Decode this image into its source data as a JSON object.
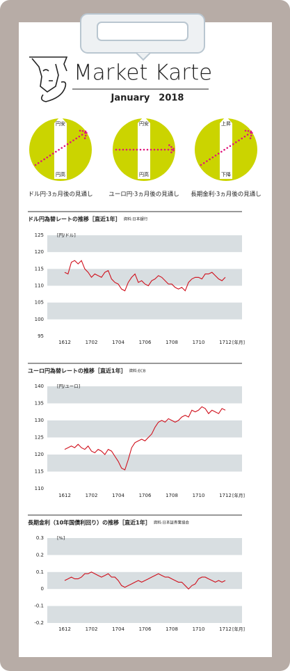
{
  "header": {
    "title": "Market Karte",
    "date": "January　2018"
  },
  "outlook": [
    {
      "top": "円安",
      "bottom": "円高",
      "caption": "ドル円·3ヵ月後の見通し"
    },
    {
      "top": "円安",
      "bottom": "円高",
      "caption": "ユーロ円·3ヵ月後の見通し"
    },
    {
      "top": "上昇",
      "bottom": "下降",
      "caption": "長期金利·3ヵ月後の見通し"
    }
  ],
  "chart_data": [
    {
      "type": "line",
      "title": "ドル円為替レートの推移［直近1年］",
      "source": "資料:日本銀行",
      "y_unit": "[円/ドル]",
      "x_unit": "[年月]",
      "color": "#d0101c",
      "categories": [
        "1612",
        null,
        null,
        null,
        null,
        null,
        null,
        null,
        "1702",
        null,
        null,
        null,
        null,
        null,
        null,
        null,
        "1704",
        null,
        null,
        null,
        null,
        null,
        null,
        null,
        "1706",
        null,
        null,
        null,
        null,
        null,
        null,
        null,
        "1708",
        null,
        null,
        null,
        null,
        null,
        null,
        null,
        "1710",
        null,
        null,
        null,
        null,
        null,
        null,
        null,
        "1712"
      ],
      "values": [
        114.0,
        113.5,
        117.0,
        117.5,
        116.5,
        117.5,
        115.0,
        114.0,
        112.5,
        113.5,
        113.0,
        112.5,
        114.0,
        114.5,
        112.0,
        111.0,
        110.5,
        109.0,
        108.5,
        111.0,
        112.5,
        113.5,
        111.0,
        111.5,
        110.5,
        110.0,
        111.5,
        112.0,
        113.0,
        112.5,
        111.5,
        110.5,
        110.5,
        109.5,
        109.0,
        109.5,
        108.5,
        111.0,
        112.0,
        112.5,
        112.5,
        112.0,
        113.5,
        113.5,
        114.0,
        113.0,
        112.0,
        111.5,
        112.5
      ],
      "ylim": [
        95,
        125
      ],
      "yticks": [
        95,
        100,
        105,
        110,
        115,
        120,
        125
      ]
    },
    {
      "type": "line",
      "title": "ユーロ円為替レートの推移［直近1年］",
      "source": "資料:ECB",
      "y_unit": "[円/ユーロ]",
      "x_unit": "[年月]",
      "color": "#d0101c",
      "categories": [
        "1612",
        null,
        null,
        null,
        null,
        null,
        null,
        null,
        "1702",
        null,
        null,
        null,
        null,
        null,
        null,
        null,
        "1704",
        null,
        null,
        null,
        null,
        null,
        null,
        null,
        "1706",
        null,
        null,
        null,
        null,
        null,
        null,
        null,
        "1708",
        null,
        null,
        null,
        null,
        null,
        null,
        null,
        "1710",
        null,
        null,
        null,
        null,
        null,
        null,
        null,
        "1712"
      ],
      "values": [
        121.5,
        122.0,
        122.5,
        122.0,
        123.0,
        122.0,
        121.5,
        122.5,
        121.0,
        120.5,
        121.5,
        121.0,
        120.0,
        121.5,
        121.0,
        119.5,
        118.0,
        116.0,
        115.5,
        118.5,
        122.0,
        123.5,
        124.0,
        124.5,
        124.0,
        125.0,
        126.0,
        128.0,
        129.5,
        130.0,
        129.5,
        130.5,
        130.0,
        129.5,
        130.0,
        131.0,
        131.5,
        131.0,
        133.0,
        132.5,
        133.0,
        134.0,
        133.5,
        132.0,
        133.0,
        132.5,
        132.0,
        133.5,
        133.0
      ],
      "ylim": [
        110,
        140
      ],
      "yticks": [
        110,
        115,
        120,
        125,
        130,
        135,
        140
      ]
    },
    {
      "type": "line",
      "title": "長期金利（10年国債利回り）の推移［直近1年］",
      "source": "資料:日本証券業協会",
      "y_unit": "[%]",
      "x_unit": "[年月]",
      "color": "#d0101c",
      "categories": [
        "1612",
        null,
        null,
        null,
        null,
        null,
        null,
        null,
        "1702",
        null,
        null,
        null,
        null,
        null,
        null,
        null,
        "1704",
        null,
        null,
        null,
        null,
        null,
        null,
        null,
        "1706",
        null,
        null,
        null,
        null,
        null,
        null,
        null,
        "1708",
        null,
        null,
        null,
        null,
        null,
        null,
        null,
        "1710",
        null,
        null,
        null,
        null,
        null,
        null,
        null,
        "1712"
      ],
      "values": [
        0.05,
        0.06,
        0.07,
        0.06,
        0.06,
        0.07,
        0.09,
        0.09,
        0.1,
        0.09,
        0.08,
        0.07,
        0.08,
        0.09,
        0.07,
        0.07,
        0.05,
        0.02,
        0.01,
        0.02,
        0.03,
        0.04,
        0.05,
        0.04,
        0.05,
        0.06,
        0.07,
        0.08,
        0.09,
        0.08,
        0.07,
        0.07,
        0.06,
        0.05,
        0.04,
        0.04,
        0.02,
        0.0,
        0.02,
        0.03,
        0.06,
        0.07,
        0.07,
        0.06,
        0.05,
        0.04,
        0.05,
        0.04,
        0.05
      ],
      "ylim": [
        -0.2,
        0.3
      ],
      "yticks": [
        -0.2,
        -0.1,
        0,
        0.1,
        0.2,
        0.3
      ]
    }
  ]
}
